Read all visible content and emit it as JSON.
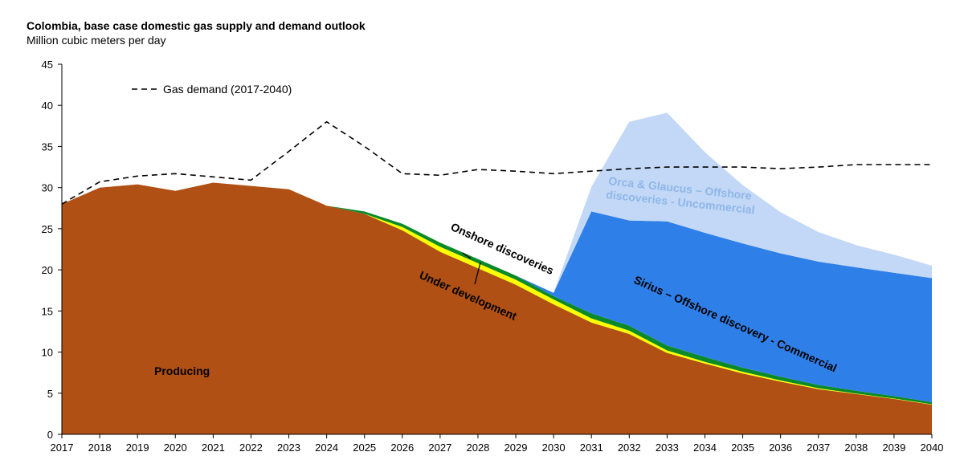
{
  "chart_data": {
    "type": "area",
    "stacked": true,
    "title": "Colombia, base case domestic gas supply and demand outlook",
    "ylabel": "Million cubic meters per day",
    "xlabel": "",
    "ylim": [
      0,
      45
    ],
    "yticks": [
      0,
      5,
      10,
      15,
      20,
      25,
      30,
      35,
      40,
      45
    ],
    "x": [
      2017,
      2018,
      2019,
      2020,
      2021,
      2022,
      2023,
      2024,
      2025,
      2026,
      2027,
      2028,
      2029,
      2030,
      2031,
      2032,
      2033,
      2034,
      2035,
      2036,
      2037,
      2038,
      2039,
      2040
    ],
    "grid": false,
    "series": [
      {
        "name": "Producing",
        "color": "#b05014",
        "values": [
          28,
          30,
          30.4,
          29.6,
          30.6,
          30.2,
          29.8,
          27.8,
          26.8,
          24.8,
          22.2,
          20.2,
          18.2,
          15.8,
          13.6,
          12.2,
          9.9,
          8.6,
          7.4,
          6.4,
          5.5,
          4.9,
          4.3,
          3.6
        ]
      },
      {
        "name": "Under development",
        "color": "#ffff00",
        "values": [
          0,
          0,
          0,
          0,
          0,
          0,
          0,
          0,
          0,
          0.4,
          0.6,
          0.6,
          0.6,
          0.6,
          0.5,
          0.4,
          0.3,
          0.2,
          0.2,
          0.15,
          0.1,
          0.05,
          0.05,
          0.05
        ]
      },
      {
        "name": "Onshore discoveries",
        "color": "#0a8a28",
        "values": [
          0,
          0,
          0,
          0,
          0,
          0,
          0,
          0,
          0.3,
          0.4,
          0.5,
          0.5,
          0.5,
          0.4,
          0.6,
          0.6,
          0.6,
          0.6,
          0.5,
          0.45,
          0.4,
          0.35,
          0.3,
          0.25
        ]
      },
      {
        "name": "Sirius – Offshore discovery - Commercial",
        "color": "#2f7fe8",
        "values": [
          0,
          0,
          0,
          0,
          0,
          0,
          0,
          0,
          0,
          0,
          0,
          0,
          0,
          0.4,
          12.4,
          12.8,
          15.1,
          15.1,
          15.1,
          15.0,
          15.0,
          15.0,
          15.0,
          15.1
        ]
      },
      {
        "name": "Orca & Glaucus – Offshore discoveries - Uncommercial",
        "color": "#c2d8f6",
        "values": [
          0,
          0,
          0,
          0,
          0,
          0,
          0,
          0,
          0,
          0,
          0,
          0,
          0,
          0,
          3.0,
          12.0,
          13.2,
          9.8,
          7.1,
          5.0,
          3.6,
          2.7,
          2.2,
          1.5
        ]
      }
    ],
    "demand": {
      "name": "Gas demand (2017-2040)",
      "values": [
        28,
        30.7,
        31.4,
        31.7,
        31.3,
        30.9,
        34.4,
        38.0,
        35.0,
        31.7,
        31.5,
        32.2,
        32.0,
        31.7,
        32.0,
        32.3,
        32.5,
        32.5,
        32.5,
        32.3,
        32.5,
        32.8,
        32.8,
        32.8
      ],
      "style": "dashed"
    },
    "annotations": [
      "Producing",
      "Under development",
      "Onshore discoveries",
      "Sirius – Offshore discovery - Commercial",
      "Orca & Glaucus – Offshore",
      "discoveries - Uncommercial"
    ]
  }
}
